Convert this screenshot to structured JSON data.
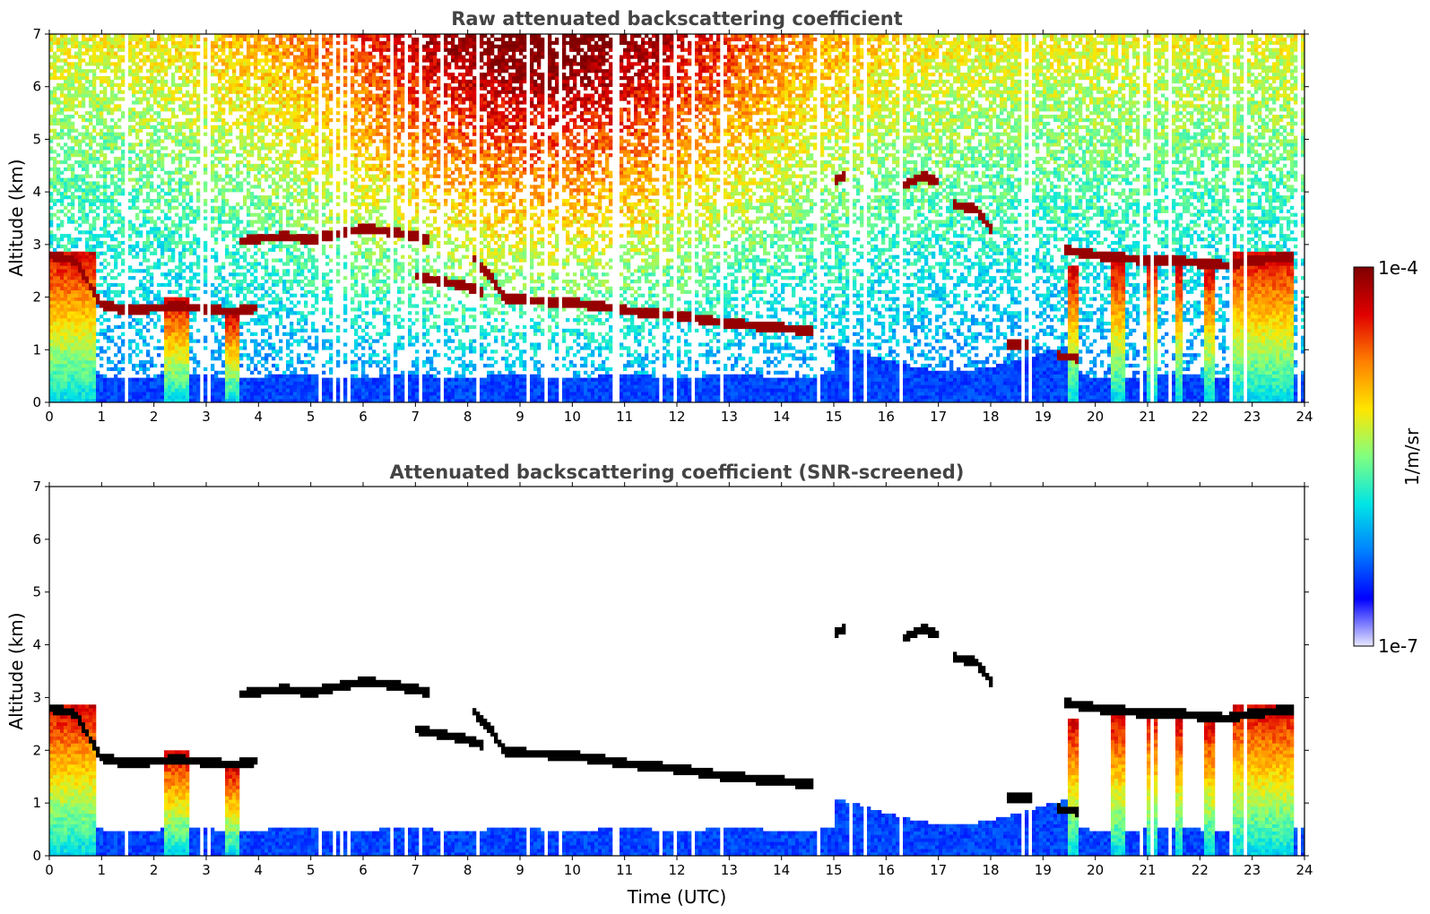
{
  "chart_data": [
    {
      "type": "heatmap",
      "title": "Raw attenuated backscattering coefficient",
      "xlabel": "",
      "ylabel": "Altitude (km)",
      "xlim": [
        0,
        24
      ],
      "ylim": [
        0,
        7
      ],
      "x_ticks": [
        "0",
        "1",
        "2",
        "3",
        "4",
        "5",
        "6",
        "7",
        "8",
        "9",
        "10",
        "11",
        "12",
        "13",
        "14",
        "15",
        "16",
        "17",
        "18",
        "19",
        "20",
        "21",
        "22",
        "23",
        "24"
      ],
      "y_ticks": [
        "0",
        "1",
        "2",
        "3",
        "4",
        "5",
        "6",
        "7"
      ],
      "screened": false,
      "layers": [
        {
          "x": [
            0.0,
            0.5,
            1.0,
            1.5,
            2.0,
            2.5,
            3.0,
            3.5,
            4.0
          ],
          "y": [
            2.8,
            2.7,
            1.85,
            1.75,
            1.8,
            1.82,
            1.78,
            1.72,
            1.8
          ]
        },
        {
          "x": [
            3.6,
            4.0,
            4.5,
            5.0,
            5.5,
            6.0,
            6.5,
            7.0,
            7.3
          ],
          "y": [
            3.05,
            3.12,
            3.15,
            3.1,
            3.2,
            3.3,
            3.25,
            3.15,
            3.1
          ]
        },
        {
          "x": [
            7.0,
            7.5,
            8.0,
            8.3
          ],
          "y": [
            2.4,
            2.3,
            2.2,
            2.1
          ]
        },
        {
          "x": [
            8.1,
            8.4,
            8.7
          ],
          "y": [
            2.75,
            2.45,
            2.0
          ]
        },
        {
          "x": [
            8.7,
            9.0,
            10.0,
            11.0,
            12.0,
            13.0,
            14.0,
            14.6
          ],
          "y": [
            1.95,
            1.95,
            1.9,
            1.75,
            1.65,
            1.5,
            1.42,
            1.35
          ]
        },
        {
          "x": [
            15.0,
            15.2
          ],
          "y": [
            4.2,
            4.3
          ]
        },
        {
          "x": [
            16.3,
            16.7,
            17.0
          ],
          "y": [
            4.1,
            4.3,
            4.2
          ]
        },
        {
          "x": [
            17.3,
            17.7,
            18.0
          ],
          "y": [
            3.75,
            3.7,
            3.3
          ]
        },
        {
          "x": [
            19.4,
            20.0,
            20.5,
            21.0,
            21.5,
            22.0,
            22.5,
            23.0,
            23.5,
            23.8
          ],
          "y": [
            2.9,
            2.8,
            2.75,
            2.7,
            2.7,
            2.65,
            2.6,
            2.7,
            2.75,
            2.75
          ]
        },
        {
          "x": [
            18.3,
            18.8
          ],
          "y": [
            1.1,
            1.1
          ]
        },
        {
          "x": [
            19.3,
            19.7
          ],
          "y": [
            0.88,
            0.85
          ]
        }
      ],
      "columns": [
        {
          "x0": 0.0,
          "x1": 0.9,
          "top": 2.9
        },
        {
          "x0": 2.2,
          "x1": 2.7,
          "top": 2.0
        },
        {
          "x0": 3.35,
          "x1": 3.6,
          "top": 1.7
        },
        {
          "x0": 19.5,
          "x1": 19.65,
          "top": 2.6
        },
        {
          "x0": 20.3,
          "x1": 20.6,
          "top": 2.7
        },
        {
          "x0": 21.0,
          "x1": 21.2,
          "top": 2.8
        },
        {
          "x0": 21.5,
          "x1": 21.7,
          "top": 2.6
        },
        {
          "x0": 22.1,
          "x1": 22.3,
          "top": 2.6
        },
        {
          "x0": 22.6,
          "x1": 23.8,
          "top": 2.9
        }
      ]
    },
    {
      "type": "heatmap",
      "title": "Attenuated backscattering coefficient (SNR-screened)",
      "xlabel": "Time (UTC)",
      "ylabel": "Altitude (km)",
      "xlim": [
        0,
        24
      ],
      "ylim": [
        0,
        7
      ],
      "x_ticks": [
        "0",
        "1",
        "2",
        "3",
        "4",
        "5",
        "6",
        "7",
        "8",
        "9",
        "10",
        "11",
        "12",
        "13",
        "14",
        "15",
        "16",
        "17",
        "18",
        "19",
        "20",
        "21",
        "22",
        "23",
        "24"
      ],
      "y_ticks": [
        "0",
        "1",
        "2",
        "3",
        "4",
        "5",
        "6",
        "7"
      ],
      "screened": true
    }
  ],
  "colorbar": {
    "label": "1/m/sr",
    "max_label": "1e-4",
    "min_label": "1e-7",
    "scale": "log",
    "colormap": [
      "#e8e8ff",
      "#0000ff",
      "#0080ff",
      "#00e5e5",
      "#80ff80",
      "#ffe600",
      "#ff8000",
      "#e00000",
      "#800000"
    ]
  }
}
